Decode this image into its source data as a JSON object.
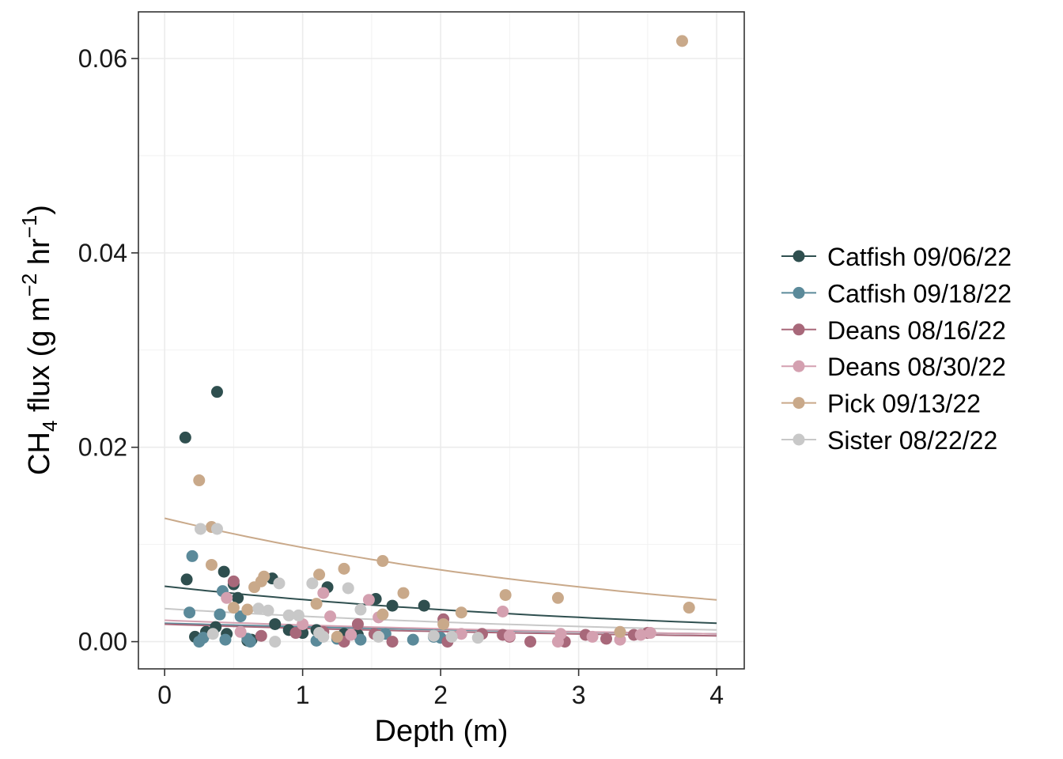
{
  "chart_data": {
    "type": "scatter",
    "xlabel": "Depth (m)",
    "ylabel": {
      "prefix": "CH",
      "sub": "4",
      "rest": " flux (g m",
      "sup1": "−2",
      "mid": " hr",
      "sup2": "−1",
      "suffix": ")"
    },
    "xlim": [
      -0.19,
      4.2
    ],
    "ylim": [
      -0.0028,
      0.0648
    ],
    "x_ticks": [
      0,
      1,
      2,
      3,
      4
    ],
    "x_tick_labels": [
      "0",
      "1",
      "2",
      "3",
      "4"
    ],
    "y_ticks": [
      0.0,
      0.02,
      0.04,
      0.06
    ],
    "y_tick_labels": [
      "0.00",
      "0.02",
      "0.04",
      "0.06"
    ],
    "grid": true,
    "legend_position": "right",
    "series": [
      {
        "name": "Catfish 09/06/22",
        "color": "#2f4f4f",
        "points": [
          [
            0.15,
            0.021
          ],
          [
            0.38,
            0.0257
          ],
          [
            0.16,
            0.0064
          ],
          [
            0.43,
            0.0072
          ],
          [
            0.5,
            0.0059
          ],
          [
            0.53,
            0.0045
          ],
          [
            0.22,
            0.0005
          ],
          [
            0.3,
            0.001
          ],
          [
            0.37,
            0.0015
          ],
          [
            0.45,
            0.0008
          ],
          [
            0.6,
            0.0001
          ],
          [
            0.63,
            0.0002
          ],
          [
            0.78,
            0.0065
          ],
          [
            0.8,
            0.0018
          ],
          [
            0.9,
            0.0012
          ],
          [
            1.0,
            0.0009
          ],
          [
            1.1,
            0.0012
          ],
          [
            1.18,
            0.0056
          ],
          [
            1.3,
            0.0008
          ],
          [
            1.4,
            0.0007
          ],
          [
            1.53,
            0.0044
          ],
          [
            1.65,
            0.0037
          ],
          [
            1.88,
            0.0037
          ]
        ],
        "trend": [
          [
            0,
            0.0057
          ],
          [
            4,
            0.0019
          ]
        ]
      },
      {
        "name": "Catfish 09/18/22",
        "color": "#5b8a9a",
        "points": [
          [
            0.2,
            0.0088
          ],
          [
            0.18,
            0.003
          ],
          [
            0.25,
            0.0
          ],
          [
            0.28,
            0.0004
          ],
          [
            0.4,
            0.0028
          ],
          [
            0.42,
            0.0052
          ],
          [
            0.44,
            0.0002
          ],
          [
            0.55,
            0.0026
          ],
          [
            0.6,
            0.0003
          ],
          [
            0.62,
            0.0
          ],
          [
            1.1,
            0.0001
          ],
          [
            1.25,
            0.0003
          ],
          [
            1.42,
            0.0002
          ],
          [
            1.6,
            0.0008
          ],
          [
            1.8,
            0.0002
          ],
          [
            1.95,
            0.0005
          ],
          [
            2.0,
            0.0004
          ]
        ],
        "trend": [
          [
            0,
            0.0019
          ],
          [
            4,
            0.0008
          ]
        ]
      },
      {
        "name": "Deans 08/16/22",
        "color": "#a8687a",
        "points": [
          [
            0.5,
            0.0062
          ],
          [
            0.7,
            0.0006
          ],
          [
            0.95,
            0.0009
          ],
          [
            1.15,
            0.001
          ],
          [
            1.3,
            0.0
          ],
          [
            1.4,
            0.0018
          ],
          [
            1.52,
            0.0008
          ],
          [
            1.65,
            0.0
          ],
          [
            2.02,
            0.0023
          ],
          [
            2.05,
            0.0
          ],
          [
            2.3,
            0.0008
          ],
          [
            2.45,
            0.0007
          ],
          [
            2.5,
            0.0005
          ],
          [
            2.65,
            0.0
          ],
          [
            2.9,
            0.0
          ],
          [
            3.05,
            0.0007
          ],
          [
            3.2,
            0.0003
          ],
          [
            3.4,
            0.0007
          ],
          [
            3.5,
            0.0009
          ]
        ],
        "trend": [
          [
            0,
            0.0018
          ],
          [
            4,
            0.0006
          ]
        ]
      },
      {
        "name": "Deans 08/30/22",
        "color": "#d4a0b0",
        "points": [
          [
            0.45,
            0.0045
          ],
          [
            0.55,
            0.001
          ],
          [
            1.0,
            0.0018
          ],
          [
            1.15,
            0.005
          ],
          [
            1.2,
            0.0026
          ],
          [
            1.35,
            0.0007
          ],
          [
            1.48,
            0.0043
          ],
          [
            1.55,
            0.0025
          ],
          [
            2.15,
            0.0008
          ],
          [
            2.45,
            0.0031
          ],
          [
            2.5,
            0.0006
          ],
          [
            2.85,
            0.0
          ],
          [
            2.87,
            0.0008
          ],
          [
            3.1,
            0.0005
          ],
          [
            3.3,
            0.0002
          ],
          [
            3.45,
            0.0007
          ],
          [
            3.52,
            0.0009
          ]
        ],
        "trend": [
          [
            0,
            0.0022
          ],
          [
            4,
            0.0008
          ]
        ]
      },
      {
        "name": "Pick 09/13/22",
        "color": "#c9a98a",
        "points": [
          [
            0.25,
            0.0166
          ],
          [
            0.34,
            0.0118
          ],
          [
            0.34,
            0.0079
          ],
          [
            0.5,
            0.0035
          ],
          [
            0.6,
            0.0033
          ],
          [
            0.65,
            0.0056
          ],
          [
            0.7,
            0.0062
          ],
          [
            0.72,
            0.0067
          ],
          [
            1.1,
            0.0039
          ],
          [
            1.12,
            0.0069
          ],
          [
            1.3,
            0.0075
          ],
          [
            1.25,
            0.0005
          ],
          [
            1.58,
            0.0083
          ],
          [
            1.58,
            0.0028
          ],
          [
            1.73,
            0.005
          ],
          [
            2.02,
            0.0018
          ],
          [
            2.15,
            0.003
          ],
          [
            2.47,
            0.0048
          ],
          [
            2.85,
            0.0045
          ],
          [
            3.3,
            0.001
          ],
          [
            3.75,
            0.0618
          ],
          [
            3.8,
            0.0035
          ]
        ],
        "trend": [
          [
            0,
            0.0127
          ],
          [
            4,
            0.0043
          ]
        ]
      },
      {
        "name": "Sister 08/22/22",
        "color": "#c8c8c8",
        "points": [
          [
            0.26,
            0.0116
          ],
          [
            0.38,
            0.0116
          ],
          [
            0.35,
            0.0008
          ],
          [
            0.68,
            0.0034
          ],
          [
            0.75,
            0.0032
          ],
          [
            0.8,
            0.0
          ],
          [
            0.83,
            0.006
          ],
          [
            0.9,
            0.0027
          ],
          [
            0.97,
            0.0027
          ],
          [
            1.07,
            0.006
          ],
          [
            1.12,
            0.0009
          ],
          [
            1.15,
            0.0005
          ],
          [
            1.33,
            0.0055
          ],
          [
            1.42,
            0.0033
          ],
          [
            1.55,
            0.0005
          ],
          [
            1.95,
            0.0006
          ],
          [
            2.08,
            0.0005
          ],
          [
            2.27,
            0.0004
          ]
        ],
        "trend": [
          [
            0,
            0.0034
          ],
          [
            4,
            0.0012
          ]
        ]
      }
    ]
  }
}
